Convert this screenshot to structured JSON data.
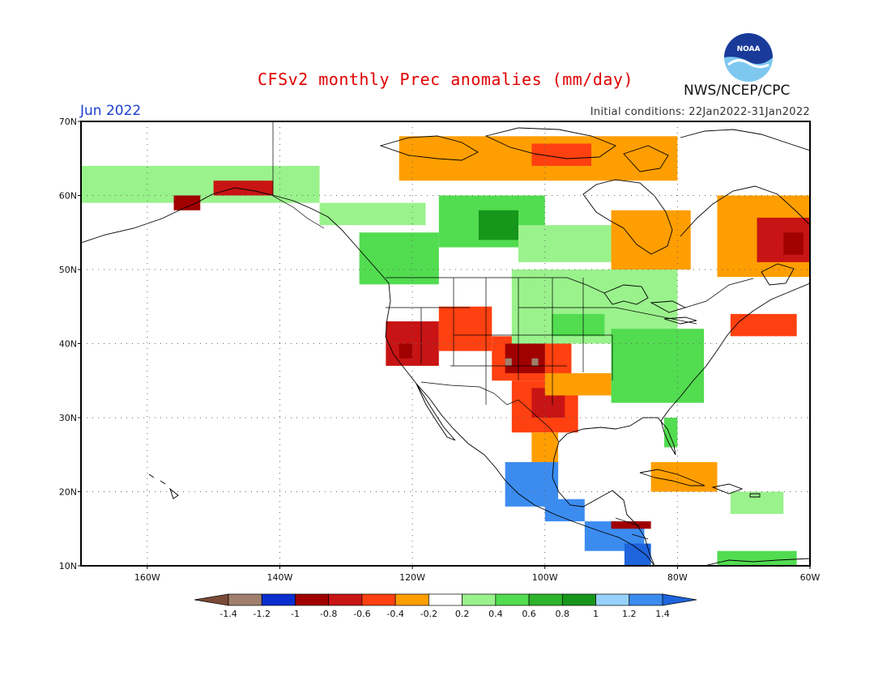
{
  "title": "CFSv2 monthly Prec anomalies (mm/day)",
  "month": "Jun 2022",
  "initial_conditions": "Initial conditions: 22Jan2022-31Jan2022",
  "organization": "NWS/NCEP/CPC",
  "logo_text": "NOAA",
  "map": {
    "lon_range": [
      -170,
      -60
    ],
    "lat_range": [
      10,
      70
    ],
    "lat_ticks": [
      {
        "value": 70,
        "label": "70N"
      },
      {
        "value": 60,
        "label": "60N"
      },
      {
        "value": 50,
        "label": "50N"
      },
      {
        "value": 40,
        "label": "40N"
      },
      {
        "value": 30,
        "label": "30N"
      },
      {
        "value": 20,
        "label": "20N"
      },
      {
        "value": 10,
        "label": "10N"
      }
    ],
    "lon_ticks": [
      {
        "value": -160,
        "label": "160W"
      },
      {
        "value": -140,
        "label": "140W"
      },
      {
        "value": -120,
        "label": "120W"
      },
      {
        "value": -100,
        "label": "100W"
      },
      {
        "value": -80,
        "label": "80W"
      },
      {
        "value": -60,
        "label": "60W"
      }
    ]
  },
  "colorbar": {
    "labels": [
      "-1.4",
      "-1.2",
      "-1",
      "-0.8",
      "-0.6",
      "-0.4",
      "-0.2",
      "0.2",
      "0.4",
      "0.6",
      "0.8",
      "1",
      "1.2",
      "1.4"
    ],
    "colors": [
      "#7b4a36",
      "#a0806c",
      "#0a2ecf",
      "#a00000",
      "#c81414",
      "#ff4010",
      "#ff9e00",
      "#ffffff",
      "#9af28c",
      "#52dc50",
      "#2db42a",
      "#16961a",
      "#96d2fa",
      "#3c8cf0",
      "#1e64dc"
    ]
  },
  "chart_data": {
    "type": "heatmap",
    "title": "CFSv2 monthly Prec anomalies (mm/day)",
    "variable": "Precipitation anomaly",
    "units": "mm/day",
    "valid_month": "Jun 2022",
    "initial_conditions": "22Jan2022-31Jan2022",
    "levels": [
      -1.4,
      -1.2,
      -1,
      -0.8,
      -0.6,
      -0.4,
      -0.2,
      0.2,
      0.4,
      0.6,
      0.8,
      1,
      1.2,
      1.4
    ],
    "regions": [
      {
        "lon": [
          -178,
          -134
        ],
        "lat": [
          59,
          64
        ],
        "value": 0.3
      },
      {
        "lon": [
          -156,
          -152
        ],
        "lat": [
          58,
          60
        ],
        "value": -0.9
      },
      {
        "lon": [
          -150,
          -141
        ],
        "lat": [
          60,
          62
        ],
        "value": -0.8
      },
      {
        "lon": [
          -134,
          -118
        ],
        "lat": [
          56,
          59
        ],
        "value": 0.3
      },
      {
        "lon": [
          -116,
          -100
        ],
        "lat": [
          53,
          60
        ],
        "value": 0.5
      },
      {
        "lon": [
          -110,
          -104
        ],
        "lat": [
          54,
          58
        ],
        "value": 0.8
      },
      {
        "lon": [
          -128,
          -116
        ],
        "lat": [
          48,
          55
        ],
        "value": 0.4
      },
      {
        "lon": [
          -104,
          -90
        ],
        "lat": [
          51,
          56
        ],
        "value": 0.3
      },
      {
        "lon": [
          -122,
          -80
        ],
        "lat": [
          62,
          68
        ],
        "value": -0.3
      },
      {
        "lon": [
          -102,
          -93
        ],
        "lat": [
          64,
          67
        ],
        "value": -0.6
      },
      {
        "lon": [
          -90,
          -78
        ],
        "lat": [
          50,
          58
        ],
        "value": -0.3
      },
      {
        "lon": [
          -74,
          -60
        ],
        "lat": [
          49,
          60
        ],
        "value": -0.4
      },
      {
        "lon": [
          -68,
          -60
        ],
        "lat": [
          51,
          57
        ],
        "value": -0.8
      },
      {
        "lon": [
          -64,
          -61
        ],
        "lat": [
          52,
          55
        ],
        "value": -1.0
      },
      {
        "lon": [
          -124,
          -116
        ],
        "lat": [
          37,
          43
        ],
        "value": -0.7
      },
      {
        "lon": [
          -122,
          -120
        ],
        "lat": [
          38,
          40
        ],
        "value": -1.0
      },
      {
        "lon": [
          -116,
          -108
        ],
        "lat": [
          39,
          45
        ],
        "value": -0.5
      },
      {
        "lon": [
          -108,
          -96
        ],
        "lat": [
          35,
          41
        ],
        "value": -0.6
      },
      {
        "lon": [
          -106,
          -100
        ],
        "lat": [
          36,
          40
        ],
        "value": -1.0
      },
      {
        "lon": [
          -106,
          -105
        ],
        "lat": [
          37,
          38
        ],
        "value": -1.3
      },
      {
        "lon": [
          -102,
          -101
        ],
        "lat": [
          37,
          38
        ],
        "value": -1.3
      },
      {
        "lon": [
          -105,
          -95
        ],
        "lat": [
          28,
          35
        ],
        "value": -0.6
      },
      {
        "lon": [
          -102,
          -97
        ],
        "lat": [
          30,
          34
        ],
        "value": -0.8
      },
      {
        "lon": [
          -100,
          -90
        ],
        "lat": [
          33,
          36
        ],
        "value": -0.4
      },
      {
        "lon": [
          -102,
          -98
        ],
        "lat": [
          22,
          28
        ],
        "value": -0.4
      },
      {
        "lon": [
          -105,
          -80
        ],
        "lat": [
          40,
          50
        ],
        "value": 0.3
      },
      {
        "lon": [
          -99,
          -91
        ],
        "lat": [
          41,
          44
        ],
        "value": 0.5
      },
      {
        "lon": [
          -90,
          -76
        ],
        "lat": [
          32,
          42
        ],
        "value": 0.4
      },
      {
        "lon": [
          -82,
          -80
        ],
        "lat": [
          26,
          30
        ],
        "value": 0.5
      },
      {
        "lon": [
          -106,
          -98
        ],
        "lat": [
          18,
          24
        ],
        "value": 1.2
      },
      {
        "lon": [
          -100,
          -94
        ],
        "lat": [
          16,
          19
        ],
        "value": 1.3
      },
      {
        "lon": [
          -94,
          -85
        ],
        "lat": [
          12,
          16
        ],
        "value": 1.2
      },
      {
        "lon": [
          -88,
          -84
        ],
        "lat": [
          10,
          13
        ],
        "value": 1.4
      },
      {
        "lon": [
          -90,
          -84
        ],
        "lat": [
          15,
          16
        ],
        "value": -0.9
      },
      {
        "lon": [
          -72,
          -62
        ],
        "lat": [
          41,
          44
        ],
        "value": -0.6
      },
      {
        "lon": [
          -84,
          -74
        ],
        "lat": [
          20,
          24
        ],
        "value": -0.4
      },
      {
        "lon": [
          -72,
          -64
        ],
        "lat": [
          17,
          20
        ],
        "value": 0.3
      },
      {
        "lon": [
          -74,
          -62
        ],
        "lat": [
          10,
          12
        ],
        "value": 0.4
      }
    ]
  }
}
